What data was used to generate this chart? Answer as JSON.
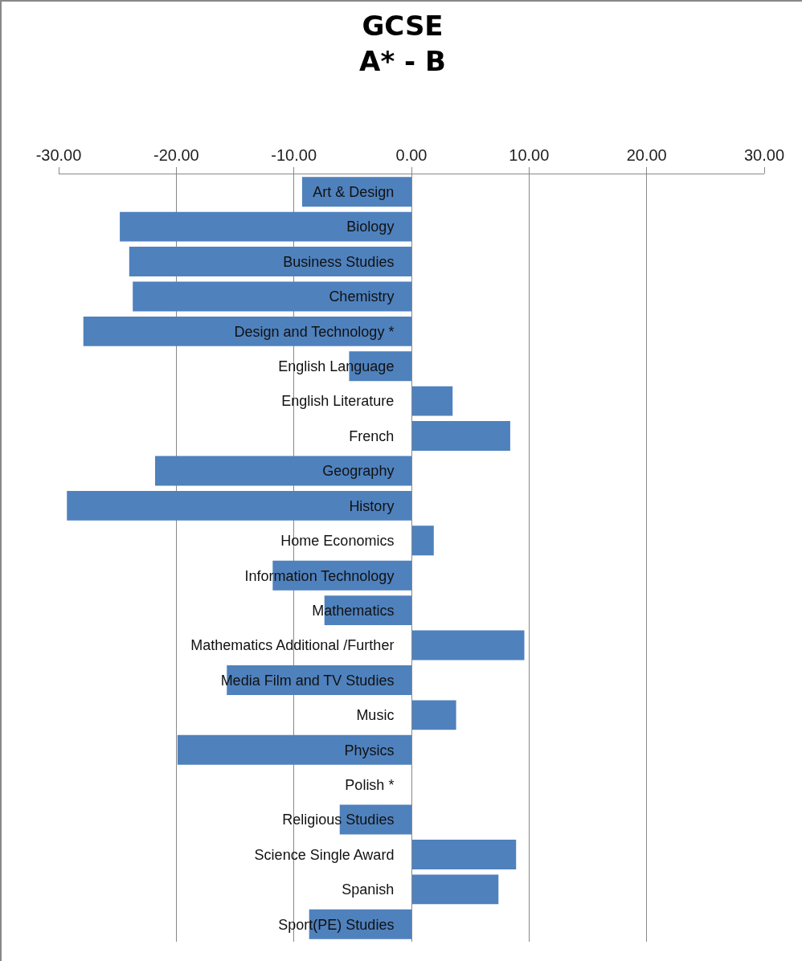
{
  "chart_data": {
    "type": "bar",
    "orientation": "horizontal",
    "title": "GCSE\nA* - B",
    "categories": [
      "Art & Design",
      "Biology",
      "Business Studies",
      "Chemistry",
      "Design and Technology *",
      "English Language",
      "English Literature",
      "French",
      "Geography",
      "History",
      "Home Economics",
      "Information Technology",
      "Mathematics",
      "Mathematics Additional /Further",
      "Media Film and TV Studies",
      "Music",
      "Physics",
      "Polish *",
      "Religious Studies",
      "Science Single Award",
      "Spanish",
      "Sport(PE) Studies"
    ],
    "values": [
      -9.3,
      -24.8,
      -24.0,
      -23.7,
      -27.9,
      -5.3,
      3.5,
      8.4,
      -21.8,
      -29.3,
      1.9,
      -11.8,
      -7.4,
      9.6,
      -15.7,
      3.8,
      -19.9,
      null,
      -6.1,
      8.9,
      7.4,
      -8.7
    ],
    "color": "#4f81bd",
    "xlim": [
      -30,
      30
    ],
    "xticks": [
      {
        "value": -30,
        "label": "-30.00"
      },
      {
        "value": -20,
        "label": "-20.00"
      },
      {
        "value": -10,
        "label": "-10.00"
      },
      {
        "value": 0,
        "label": "0.00"
      },
      {
        "value": 10,
        "label": "10.00"
      },
      {
        "value": 20,
        "label": "20.00"
      },
      {
        "value": 30,
        "label": "30.00"
      }
    ],
    "grid": "x"
  }
}
